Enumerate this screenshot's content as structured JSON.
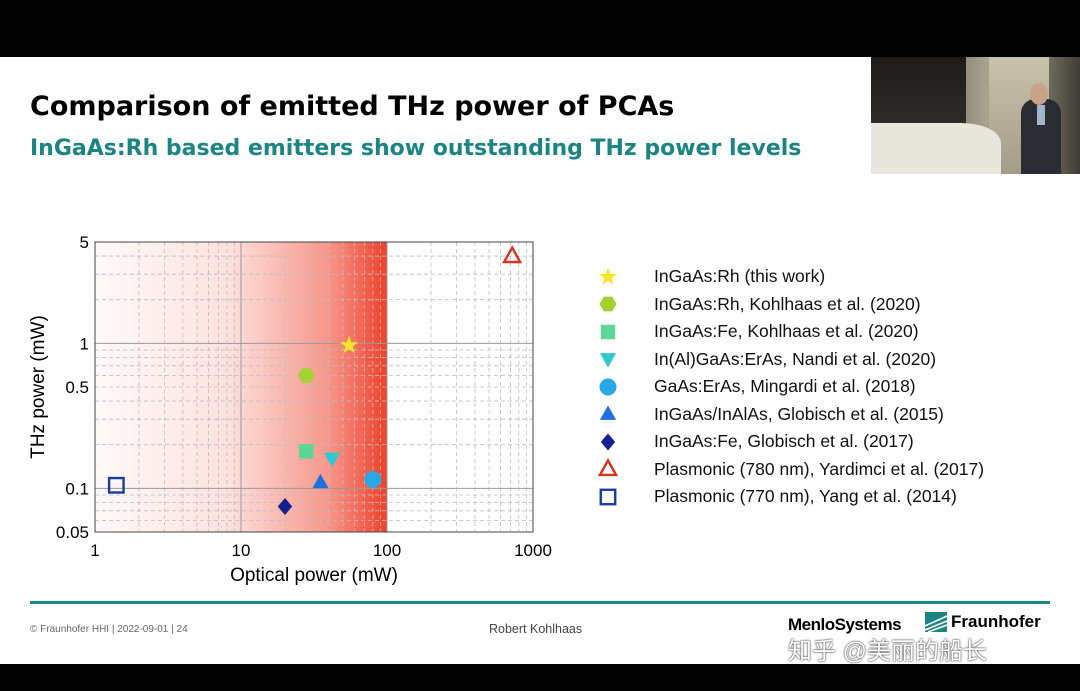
{
  "slide": {
    "title": "Comparison of emitted THz power of PCAs",
    "subtitle": "InGaAs:Rh based emitters show outstanding THz power levels",
    "footer_left": "© Fraunhofer HHI | 2022-09-01 | 24",
    "footer_presenter": "Robert Kohlhaas",
    "logo_menlo": "MenloSystems",
    "logo_fraunhofer": "Fraunhofer",
    "watermark": "知乎 @美丽的船长",
    "accent_color": "#1a8582"
  },
  "chart_data": {
    "type": "scatter",
    "xscale": "log",
    "yscale": "log",
    "xlabel": "Optical power (mW)",
    "ylabel": "THz power (mW)",
    "xlim": [
      1,
      1000
    ],
    "ylim": [
      0.05,
      5
    ],
    "xticks": [
      1,
      10,
      100,
      1000
    ],
    "xtick_labels": [
      "1",
      "10",
      "100",
      "1000"
    ],
    "yticks": [
      0.05,
      0.1,
      0.5,
      1,
      5
    ],
    "ytick_labels": [
      "0.05",
      "0.1",
      "0.5",
      "1",
      "5"
    ],
    "grid": true,
    "shaded_region": {
      "x_from": 1,
      "x_to": 100,
      "color": "#f0402a"
    },
    "series": [
      {
        "name": "InGaAs:Rh (this work)",
        "marker": "star",
        "color": "#f5e52a",
        "filled": true,
        "points": [
          {
            "x": 55,
            "y": 0.97
          }
        ]
      },
      {
        "name": "InGaAs:Rh, Kohlhaas et al. (2020)",
        "marker": "hexagon",
        "color": "#a4d233",
        "filled": true,
        "points": [
          {
            "x": 28,
            "y": 0.6
          }
        ]
      },
      {
        "name": "InGaAs:Fe, Kohlhaas et al. (2020)",
        "marker": "square",
        "color": "#5cd694",
        "filled": true,
        "points": [
          {
            "x": 28,
            "y": 0.18
          }
        ]
      },
      {
        "name": "In(Al)GaAs:ErAs, Nandi et al. (2020)",
        "marker": "triangle-down",
        "color": "#2ec9d3",
        "filled": true,
        "points": [
          {
            "x": 42,
            "y": 0.16
          }
        ]
      },
      {
        "name": "GaAs:ErAs, Mingardi et al. (2018)",
        "marker": "circle",
        "color": "#2aa8e6",
        "filled": true,
        "points": [
          {
            "x": 80,
            "y": 0.115
          }
        ]
      },
      {
        "name": "InGaAs/InAlAs, Globisch et al. (2015)",
        "marker": "triangle-up",
        "color": "#1f6fe0",
        "filled": true,
        "points": [
          {
            "x": 35,
            "y": 0.11
          }
        ]
      },
      {
        "name": "InGaAs:Fe, Globisch et al. (2017)",
        "marker": "diamond",
        "color": "#16208c",
        "filled": true,
        "points": [
          {
            "x": 20,
            "y": 0.075
          }
        ]
      },
      {
        "name": "Plasmonic (780 nm), Yardimci et al. (2017)",
        "marker": "triangle-up",
        "color": "#d63420",
        "filled": false,
        "points": [
          {
            "x": 720,
            "y": 4
          }
        ]
      },
      {
        "name": "Plasmonic (770 nm), Yang et al. (2014)",
        "marker": "square",
        "color": "#1a3aa0",
        "filled": false,
        "points": [
          {
            "x": 1.4,
            "y": 0.105
          }
        ]
      }
    ]
  }
}
